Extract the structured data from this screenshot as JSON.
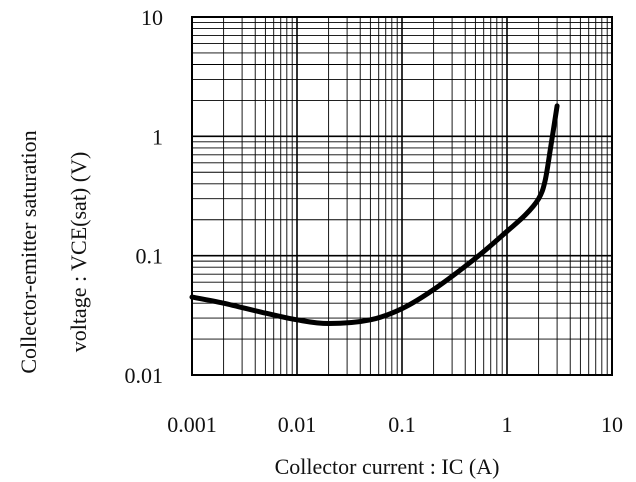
{
  "chart_data": {
    "type": "line",
    "title": "",
    "xlabel": "Collector current : IC (A)",
    "ylabel_lines": [
      "Collector-emitter saturation",
      "voltage : VCE(sat) (V)"
    ],
    "x_scale": "log",
    "y_scale": "log",
    "xlim": [
      0.001,
      10
    ],
    "ylim": [
      0.01,
      10
    ],
    "grid": true,
    "legend": "none",
    "x_ticks": [
      0.001,
      0.01,
      0.1,
      1,
      10
    ],
    "x_tick_labels": [
      "0.001",
      "0.01",
      "0.1",
      "1",
      "10"
    ],
    "y_ticks": [
      0.01,
      0.1,
      1,
      10
    ],
    "y_tick_labels": [
      "0.01",
      "0.1",
      "1",
      "10"
    ],
    "series": [
      {
        "values_xy": [
          [
            0.001,
            0.045
          ],
          [
            0.002,
            0.04
          ],
          [
            0.005,
            0.033
          ],
          [
            0.01,
            0.029
          ],
          [
            0.02,
            0.027
          ],
          [
            0.05,
            0.029
          ],
          [
            0.1,
            0.036
          ],
          [
            0.2,
            0.052
          ],
          [
            0.5,
            0.095
          ],
          [
            1,
            0.16
          ],
          [
            1.5,
            0.22
          ],
          [
            2,
            0.3
          ],
          [
            2.3,
            0.42
          ],
          [
            2.6,
            0.8
          ],
          [
            3.0,
            1.8
          ]
        ],
        "color": "#000000"
      }
    ]
  }
}
